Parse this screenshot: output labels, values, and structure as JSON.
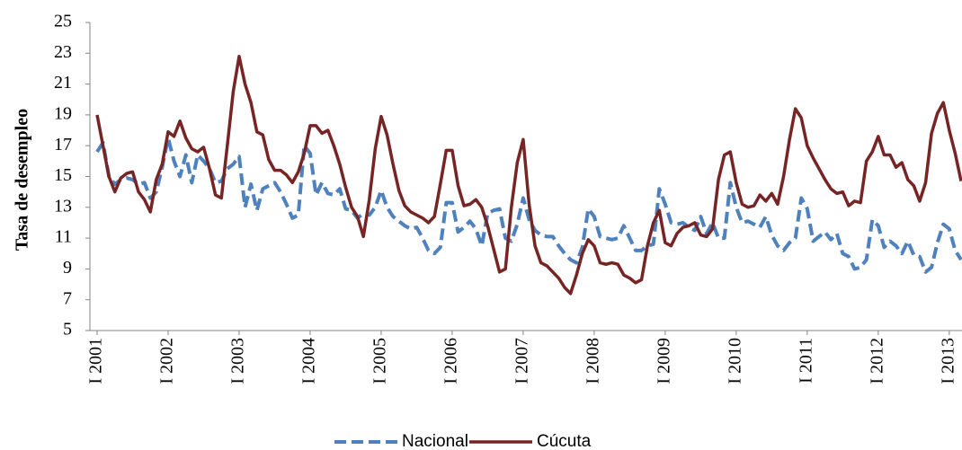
{
  "chart_data": {
    "type": "line",
    "y_label": "Tasa de desempleo",
    "categories": [
      "I 2001",
      null,
      null,
      null,
      null,
      null,
      null,
      null,
      null,
      null,
      null,
      null,
      "I 2002",
      null,
      null,
      null,
      null,
      null,
      null,
      null,
      null,
      null,
      null,
      null,
      "I 2003",
      null,
      null,
      null,
      null,
      null,
      null,
      null,
      null,
      null,
      null,
      null,
      "I 2004",
      null,
      null,
      null,
      null,
      null,
      null,
      null,
      null,
      null,
      null,
      null,
      "I 2005",
      null,
      null,
      null,
      null,
      null,
      null,
      null,
      null,
      null,
      null,
      null,
      "I 2006",
      null,
      null,
      null,
      null,
      null,
      null,
      null,
      null,
      null,
      null,
      null,
      "I 2007",
      null,
      null,
      null,
      null,
      null,
      null,
      null,
      null,
      null,
      null,
      null,
      "I 2008",
      null,
      null,
      null,
      null,
      null,
      null,
      null,
      null,
      null,
      null,
      null,
      "I 2009",
      null,
      null,
      null,
      null,
      null,
      null,
      null,
      null,
      null,
      null,
      null,
      "I 2010",
      null,
      null,
      null,
      null,
      null,
      null,
      null,
      null,
      null,
      null,
      null,
      "I 2011",
      null,
      null,
      null,
      null,
      null,
      null,
      null,
      null,
      null,
      null,
      null,
      "I 2012",
      null,
      null,
      null,
      null,
      null,
      null,
      null,
      null,
      null,
      null,
      null,
      "I 2013",
      null,
      null
    ],
    "series": [
      {
        "name": "Nacional",
        "color": "#4f81bd",
        "dashed": true,
        "values": [
          16.6,
          17.2,
          15.0,
          14.5,
          14.8,
          14.9,
          14.8,
          14.5,
          14.6,
          13.6,
          14.0,
          15.6,
          17.5,
          16.0,
          15.0,
          16.4,
          14.6,
          16.4,
          16.0,
          15.5,
          14.6,
          14.7,
          15.5,
          15.8,
          16.3,
          13.0,
          14.5,
          12.8,
          14.2,
          14.4,
          14.6,
          14.0,
          13.2,
          12.3,
          12.5,
          17.0,
          16.5,
          13.8,
          14.6,
          13.9,
          13.8,
          14.2,
          12.9,
          12.8,
          12.3,
          12.6,
          12.5,
          13.0,
          14.1,
          13.0,
          12.4,
          12.1,
          11.8,
          11.6,
          11.7,
          11.0,
          10.2,
          10.0,
          10.4,
          13.3,
          13.3,
          11.4,
          11.7,
          12.1,
          11.6,
          10.5,
          12.6,
          12.8,
          12.9,
          11.0,
          10.8,
          11.9,
          13.6,
          12.2,
          11.5,
          11.2,
          11.1,
          11.1,
          10.5,
          10.0,
          9.6,
          9.4,
          10.4,
          12.9,
          12.4,
          11.1,
          11.0,
          10.9,
          11.0,
          11.8,
          11.0,
          10.2,
          10.2,
          10.5,
          10.6,
          14.2,
          13.2,
          12.0,
          11.9,
          12.0,
          11.7,
          11.5,
          12.4,
          11.3,
          12.0,
          11.0,
          11.0,
          14.6,
          13.0,
          12.0,
          12.1,
          11.9,
          11.7,
          12.4,
          11.2,
          10.5,
          10.2,
          10.7,
          11.0,
          13.6,
          12.9,
          10.8,
          11.1,
          11.4,
          10.9,
          11.3,
          10.0,
          9.8,
          9.0,
          9.1,
          9.6,
          12.2,
          11.8,
          10.4,
          10.8,
          10.5,
          10.0,
          10.8,
          9.9,
          9.8,
          8.8,
          9.1,
          10.7,
          11.9,
          11.6,
          10.2,
          9.6
        ]
      },
      {
        "name": "Cúcuta",
        "color": "#772425",
        "dashed": false,
        "values": [
          19.0,
          17.0,
          15.0,
          14.0,
          14.9,
          15.2,
          15.3,
          14.0,
          13.5,
          12.7,
          14.8,
          15.8,
          17.9,
          17.6,
          18.6,
          17.5,
          16.8,
          16.6,
          16.9,
          15.5,
          13.8,
          13.6,
          17.0,
          20.5,
          22.8,
          21.0,
          19.8,
          17.9,
          17.7,
          16.1,
          15.4,
          15.4,
          15.1,
          14.6,
          15.3,
          16.5,
          18.3,
          18.3,
          17.8,
          18.0,
          17.0,
          15.8,
          14.3,
          13.0,
          12.4,
          11.1,
          13.5,
          16.8,
          18.9,
          17.7,
          15.8,
          14.1,
          13.1,
          12.7,
          12.5,
          12.3,
          12.0,
          12.4,
          14.5,
          16.7,
          16.7,
          14.4,
          13.1,
          13.2,
          13.5,
          13.0,
          11.8,
          10.3,
          8.8,
          9.0,
          13.0,
          15.9,
          17.4,
          13.2,
          10.5,
          9.4,
          9.2,
          8.8,
          8.4,
          7.8,
          7.4,
          8.6,
          10.0,
          10.9,
          10.5,
          9.4,
          9.3,
          9.4,
          9.3,
          8.6,
          8.4,
          8.1,
          8.3,
          10.5,
          12.0,
          12.8,
          10.7,
          10.5,
          11.3,
          11.7,
          11.8,
          12.0,
          11.2,
          11.1,
          11.6,
          14.8,
          16.4,
          16.6,
          14.6,
          13.2,
          13.0,
          13.1,
          13.8,
          13.4,
          13.9,
          13.2,
          15.0,
          17.4,
          19.4,
          18.8,
          17.0,
          16.2,
          15.5,
          14.8,
          14.2,
          13.9,
          14.0,
          13.1,
          13.4,
          13.3,
          16.0,
          16.6,
          17.6,
          16.4,
          16.4,
          15.6,
          15.9,
          14.8,
          14.4,
          13.4,
          14.6,
          17.8,
          19.1,
          19.8,
          18.0,
          16.5,
          14.7
        ]
      }
    ],
    "ylim": [
      5,
      25
    ],
    "yticks": [
      5,
      7,
      9,
      11,
      13,
      15,
      17,
      19,
      21,
      23,
      25
    ],
    "grid": false,
    "legend": "bottom"
  }
}
